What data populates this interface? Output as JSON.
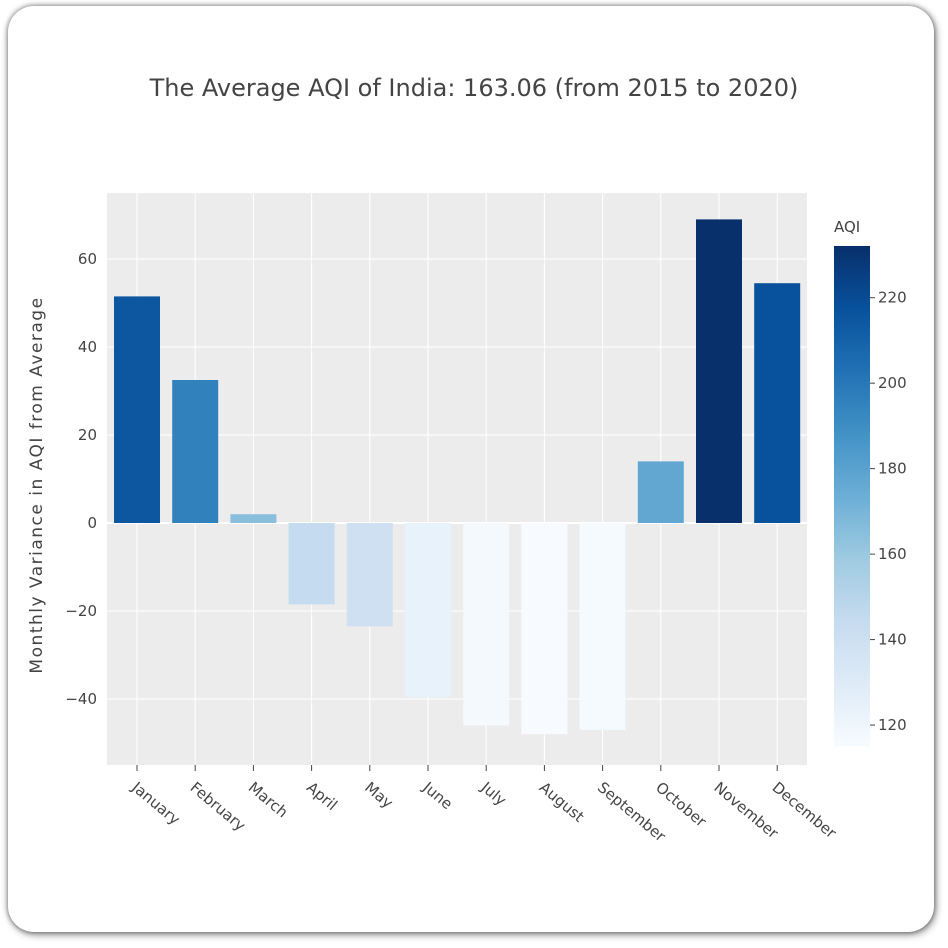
{
  "chart_data": {
    "type": "bar",
    "title": "The Average AQI of India: 163.06 (from 2015 to 2020)",
    "ylabel": "Monthly Variance in AQI from Average",
    "xlabel": "",
    "categories": [
      "January",
      "February",
      "March",
      "April",
      "May",
      "June",
      "July",
      "August",
      "September",
      "October",
      "November",
      "December"
    ],
    "values": [
      51.5,
      32.5,
      2,
      -18.5,
      -23.5,
      -39.5,
      -46,
      -48,
      -47,
      14,
      69,
      54.5
    ],
    "aqi": [
      214.6,
      195.6,
      165.1,
      144.6,
      139.6,
      123.6,
      117.1,
      115.1,
      116.1,
      177.1,
      232.1,
      217.6
    ],
    "ylim": [
      -55,
      75
    ],
    "yticks": [
      60,
      40,
      20,
      0,
      -20,
      -40
    ],
    "ytick_labels": [
      "60",
      "40",
      "20",
      "0",
      "−20",
      "−40"
    ],
    "grid": true,
    "colorbar": {
      "title": "AQI",
      "range": [
        115.1,
        232.1
      ],
      "ticks": [
        220,
        200,
        180,
        160,
        140,
        120
      ],
      "colorscale": "Blues"
    }
  }
}
